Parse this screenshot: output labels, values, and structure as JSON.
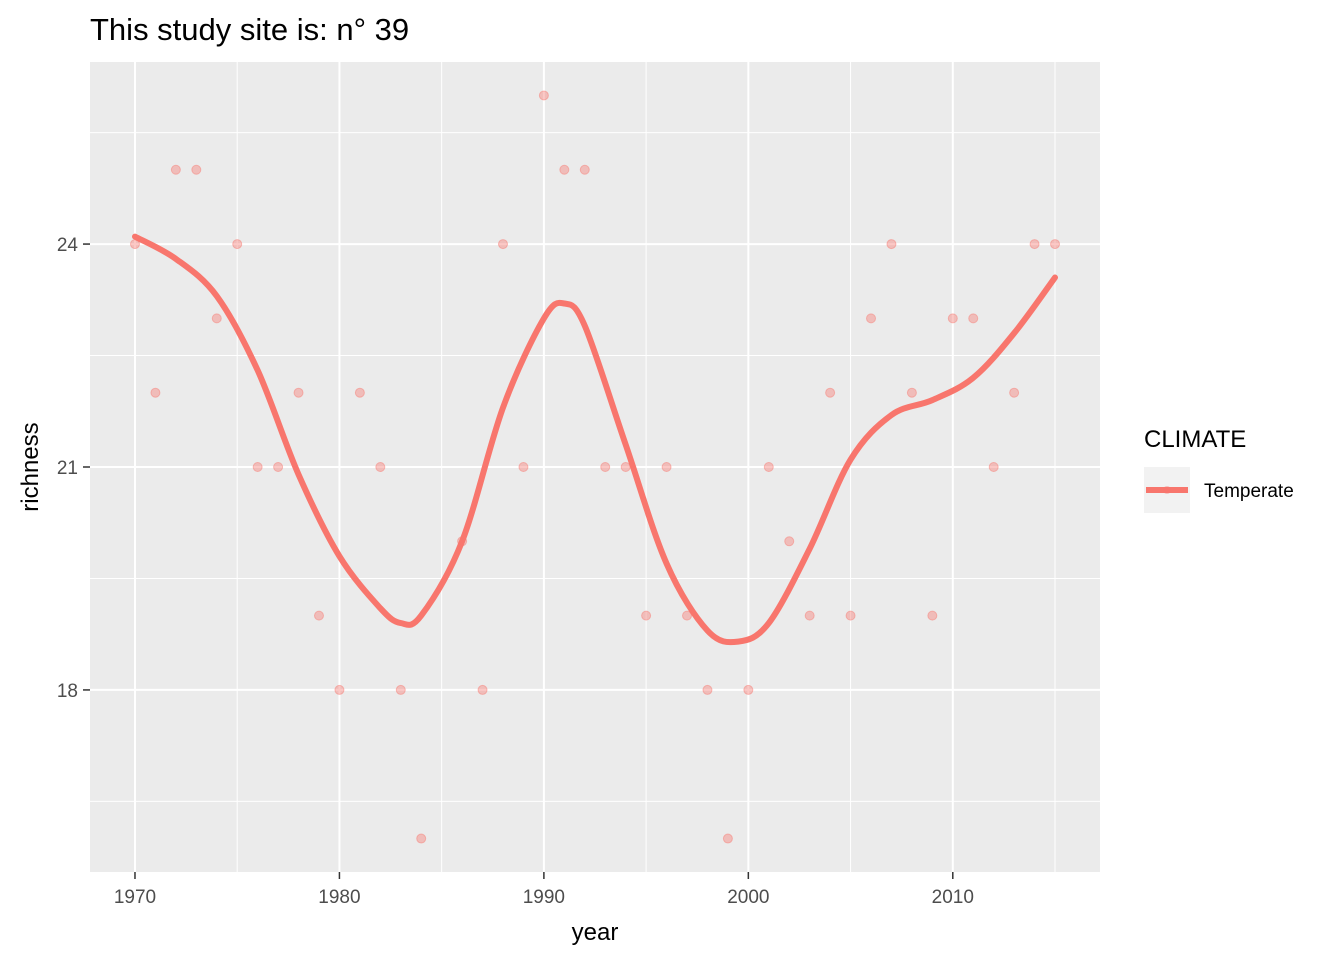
{
  "chart_data": {
    "type": "scatter",
    "title": "This study site is: n° 39",
    "xlabel": "year",
    "ylabel": "richness",
    "xlim": [
      1967.8,
      2017.2
    ],
    "ylim": [
      15.55,
      26.45
    ],
    "x_ticks": [
      1970,
      1980,
      1990,
      2000,
      2010
    ],
    "y_ticks": [
      18,
      21,
      24
    ],
    "x_tick_labels": [
      "1970",
      "1980",
      "1990",
      "2000",
      "2010"
    ],
    "y_tick_labels": [
      "18",
      "21",
      "24"
    ],
    "grid": true,
    "legend": {
      "title": "CLIMATE",
      "position": "right",
      "entries": [
        {
          "label": "Temperate",
          "color": "#f8766d"
        }
      ]
    },
    "series": [
      {
        "name": "Temperate",
        "color": "#f8766d",
        "points": [
          {
            "x": 1970,
            "y": 24
          },
          {
            "x": 1971,
            "y": 22
          },
          {
            "x": 1972,
            "y": 25
          },
          {
            "x": 1973,
            "y": 25
          },
          {
            "x": 1974,
            "y": 23
          },
          {
            "x": 1975,
            "y": 24
          },
          {
            "x": 1976,
            "y": 21
          },
          {
            "x": 1977,
            "y": 21
          },
          {
            "x": 1978,
            "y": 22
          },
          {
            "x": 1979,
            "y": 19
          },
          {
            "x": 1980,
            "y": 18
          },
          {
            "x": 1981,
            "y": 22
          },
          {
            "x": 1982,
            "y": 21
          },
          {
            "x": 1983,
            "y": 18
          },
          {
            "x": 1984,
            "y": 16
          },
          {
            "x": 1986,
            "y": 20
          },
          {
            "x": 1987,
            "y": 18
          },
          {
            "x": 1988,
            "y": 24
          },
          {
            "x": 1989,
            "y": 21
          },
          {
            "x": 1990,
            "y": 26
          },
          {
            "x": 1991,
            "y": 25
          },
          {
            "x": 1992,
            "y": 25
          },
          {
            "x": 1993,
            "y": 21
          },
          {
            "x": 1994,
            "y": 21
          },
          {
            "x": 1995,
            "y": 19
          },
          {
            "x": 1996,
            "y": 21
          },
          {
            "x": 1997,
            "y": 19
          },
          {
            "x": 1998,
            "y": 18
          },
          {
            "x": 1999,
            "y": 16
          },
          {
            "x": 2000,
            "y": 18
          },
          {
            "x": 2001,
            "y": 21
          },
          {
            "x": 2002,
            "y": 20
          },
          {
            "x": 2003,
            "y": 19
          },
          {
            "x": 2004,
            "y": 22
          },
          {
            "x": 2005,
            "y": 19
          },
          {
            "x": 2006,
            "y": 23
          },
          {
            "x": 2007,
            "y": 24
          },
          {
            "x": 2008,
            "y": 22
          },
          {
            "x": 2009,
            "y": 19
          },
          {
            "x": 2010,
            "y": 23
          },
          {
            "x": 2011,
            "y": 23
          },
          {
            "x": 2012,
            "y": 21
          },
          {
            "x": 2013,
            "y": 22
          },
          {
            "x": 2014,
            "y": 24
          },
          {
            "x": 2015,
            "y": 24
          }
        ],
        "smooth": {
          "type": "loess",
          "points": [
            {
              "x": 1970,
              "y": 24.1
            },
            {
              "x": 1972,
              "y": 23.8
            },
            {
              "x": 1974,
              "y": 23.3
            },
            {
              "x": 1976,
              "y": 22.3
            },
            {
              "x": 1978,
              "y": 20.9
            },
            {
              "x": 1980,
              "y": 19.8
            },
            {
              "x": 1982,
              "y": 19.1
            },
            {
              "x": 1983,
              "y": 18.9
            },
            {
              "x": 1984,
              "y": 19.0
            },
            {
              "x": 1986,
              "y": 20.0
            },
            {
              "x": 1988,
              "y": 21.8
            },
            {
              "x": 1990,
              "y": 23.0
            },
            {
              "x": 1991,
              "y": 23.2
            },
            {
              "x": 1992,
              "y": 22.9
            },
            {
              "x": 1994,
              "y": 21.3
            },
            {
              "x": 1996,
              "y": 19.7
            },
            {
              "x": 1998,
              "y": 18.8
            },
            {
              "x": 1999.5,
              "y": 18.65
            },
            {
              "x": 2001,
              "y": 18.9
            },
            {
              "x": 2003,
              "y": 19.9
            },
            {
              "x": 2005,
              "y": 21.1
            },
            {
              "x": 2007,
              "y": 21.7
            },
            {
              "x": 2009,
              "y": 21.9
            },
            {
              "x": 2011,
              "y": 22.2
            },
            {
              "x": 2013,
              "y": 22.8
            },
            {
              "x": 2015,
              "y": 23.55
            }
          ]
        }
      }
    ]
  }
}
